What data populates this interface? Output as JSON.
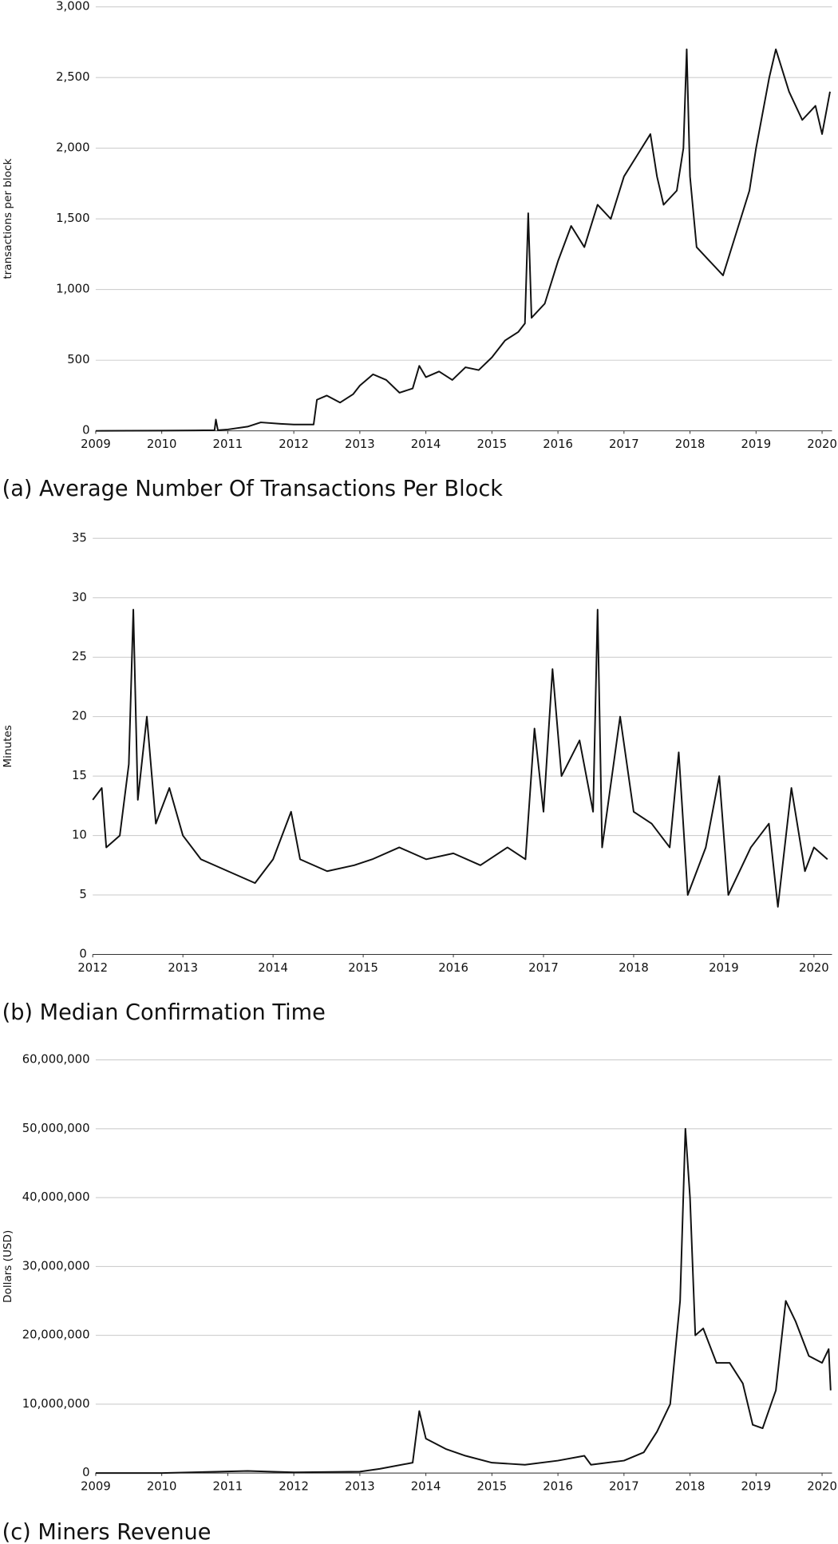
{
  "chart_data": [
    {
      "type": "line",
      "title": "(a) Average Number Of Transactions Per Block",
      "y_label": "transactions per block",
      "color": "#111111",
      "grid": true,
      "xlim": [
        2009,
        2020.15
      ],
      "xticks": [
        2009,
        2010,
        2011,
        2012,
        2013,
        2014,
        2015,
        2016,
        2017,
        2018,
        2019,
        2020
      ],
      "ylim": [
        0,
        3000
      ],
      "yticks": [
        0,
        500,
        {
          "value": 1000,
          "label": "1,000"
        },
        {
          "value": 1500,
          "label": "1,500"
        },
        {
          "value": 2000,
          "label": "2,000"
        },
        {
          "value": 2500,
          "label": "2,500"
        },
        {
          "value": 3000,
          "label": "3,000"
        }
      ],
      "x": [
        2009.0,
        2009.5,
        2010.0,
        2010.5,
        2010.8,
        2010.82,
        2010.85,
        2011.0,
        2011.3,
        2011.5,
        2011.8,
        2012.0,
        2012.3,
        2012.35,
        2012.5,
        2012.7,
        2012.9,
        2013.0,
        2013.2,
        2013.4,
        2013.6,
        2013.8,
        2013.9,
        2014.0,
        2014.2,
        2014.4,
        2014.6,
        2014.8,
        2015.0,
        2015.2,
        2015.4,
        2015.5,
        2015.55,
        2015.6,
        2015.8,
        2016.0,
        2016.2,
        2016.4,
        2016.6,
        2016.8,
        2017.0,
        2017.2,
        2017.4,
        2017.5,
        2017.6,
        2017.8,
        2017.9,
        2017.95,
        2018.0,
        2018.1,
        2018.3,
        2018.5,
        2018.7,
        2018.9,
        2019.0,
        2019.2,
        2019.3,
        2019.5,
        2019.7,
        2019.9,
        2020.0,
        2020.12
      ],
      "values": [
        0,
        1,
        2,
        3,
        5,
        80,
        5,
        10,
        30,
        60,
        50,
        45,
        45,
        220,
        250,
        200,
        260,
        320,
        400,
        360,
        270,
        300,
        460,
        380,
        420,
        360,
        450,
        430,
        520,
        640,
        700,
        760,
        1540,
        800,
        900,
        1200,
        1450,
        1300,
        1600,
        1500,
        1800,
        1950,
        2100,
        1800,
        1600,
        1700,
        2000,
        2700,
        1800,
        1300,
        1200,
        1100,
        1400,
        1700,
        2000,
        2500,
        2700,
        2400,
        2200,
        2300,
        2100,
        2400
      ]
    },
    {
      "type": "line",
      "title": "(b) Median Confirmation Time",
      "y_label": "Minutes",
      "color": "#111111",
      "grid": true,
      "xlim": [
        2012,
        2020.2
      ],
      "xticks": [
        2012,
        2013,
        2014,
        2015,
        2016,
        2017,
        2018,
        2019,
        2020
      ],
      "ylim": [
        0,
        35
      ],
      "yticks": [
        0,
        5,
        10,
        15,
        20,
        25,
        30,
        35
      ],
      "x": [
        2012.0,
        2012.1,
        2012.15,
        2012.3,
        2012.4,
        2012.45,
        2012.5,
        2012.6,
        2012.7,
        2012.85,
        2013.0,
        2013.2,
        2013.5,
        2013.8,
        2014.0,
        2014.2,
        2014.3,
        2014.6,
        2014.9,
        2015.1,
        2015.4,
        2015.7,
        2016.0,
        2016.3,
        2016.6,
        2016.8,
        2016.9,
        2017.0,
        2017.1,
        2017.2,
        2017.4,
        2017.55,
        2017.6,
        2017.65,
        2017.85,
        2018.0,
        2018.2,
        2018.4,
        2018.5,
        2018.6,
        2018.8,
        2018.95,
        2019.05,
        2019.3,
        2019.5,
        2019.6,
        2019.75,
        2019.9,
        2020.0,
        2020.15
      ],
      "values": [
        13,
        14,
        9,
        10,
        16,
        29,
        13,
        20,
        11,
        14,
        10,
        8,
        7,
        6,
        8,
        12,
        8,
        7,
        7.5,
        8,
        9,
        8,
        8.5,
        7.5,
        9,
        8,
        19,
        12,
        24,
        15,
        18,
        12,
        29,
        9,
        20,
        12,
        11,
        9,
        17,
        5,
        9,
        15,
        5,
        9,
        11,
        4,
        14,
        7,
        9,
        8
      ]
    },
    {
      "type": "line",
      "title": "(c) Miners Revenue",
      "y_label": "Dollars (USD)",
      "color": "#111111",
      "grid": true,
      "xlim": [
        2009,
        2020.15
      ],
      "xticks": [
        2009,
        2010,
        2011,
        2012,
        2013,
        2014,
        2015,
        2016,
        2017,
        2018,
        2019,
        2020
      ],
      "ylim": [
        0,
        60000000
      ],
      "yticks": [
        0,
        {
          "value": 10000000,
          "label": "10,000,000"
        },
        {
          "value": 20000000,
          "label": "20,000,000"
        },
        {
          "value": 30000000,
          "label": "30,000,000"
        },
        {
          "value": 40000000,
          "label": "40,000,000"
        },
        {
          "value": 50000000,
          "label": "50,000,000"
        },
        {
          "value": 60000000,
          "label": "60,000,000"
        }
      ],
      "x": [
        2009.0,
        2010.0,
        2011.3,
        2012.0,
        2013.0,
        2013.3,
        2013.8,
        2013.9,
        2014.0,
        2014.3,
        2014.6,
        2015.0,
        2015.5,
        2016.0,
        2016.4,
        2016.5,
        2017.0,
        2017.3,
        2017.5,
        2017.7,
        2017.85,
        2017.93,
        2018.0,
        2018.08,
        2018.2,
        2018.4,
        2018.6,
        2018.8,
        2018.95,
        2019.1,
        2019.3,
        2019.45,
        2019.6,
        2019.8,
        2020.0,
        2020.1,
        2020.13
      ],
      "values": [
        0,
        0,
        300000,
        100000,
        200000,
        600000,
        1500000,
        9000000,
        5000000,
        3500000,
        2500000,
        1500000,
        1200000,
        1800000,
        2500000,
        1200000,
        1800000,
        3000000,
        6000000,
        10000000,
        25000000,
        50000000,
        40000000,
        20000000,
        21000000,
        16000000,
        16000000,
        13000000,
        7000000,
        6500000,
        12000000,
        25000000,
        22000000,
        17000000,
        16000000,
        18000000,
        12000000
      ]
    }
  ]
}
